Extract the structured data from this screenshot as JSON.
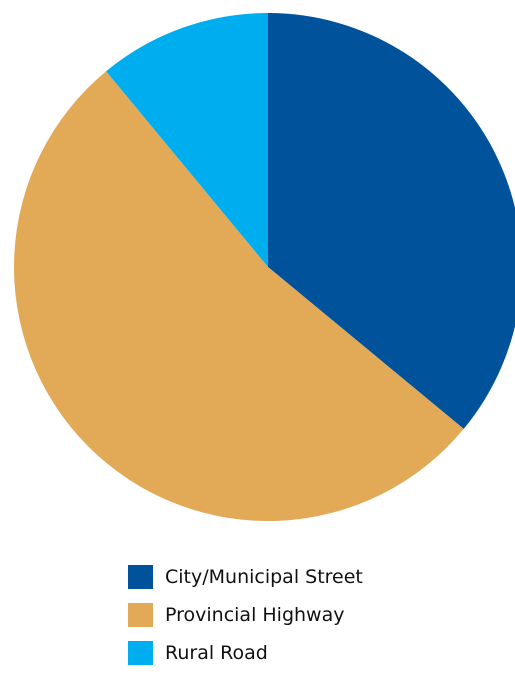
{
  "chart_data": {
    "type": "pie",
    "start_angle_deg": 0,
    "direction": "clockwise",
    "legend_position": "bottom",
    "slices": [
      {
        "label": "City/Municipal Street",
        "value": 36,
        "color": "#00539B"
      },
      {
        "label": "Provincial Highway",
        "value": 53,
        "color": "#E2A957"
      },
      {
        "label": "Rural Road",
        "value": 11,
        "color": "#00AEEF"
      }
    ]
  }
}
